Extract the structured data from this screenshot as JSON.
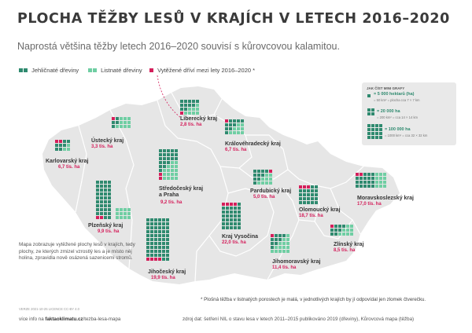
{
  "title": "PLOCHA TĚŽBY LESŮ V KRAJÍCH V LETECH 2016–2020",
  "subtitle": "Naprostá většina těžby letech 2016–2020 souvisí s kůrovcovou kalamitou.",
  "legend": {
    "coniferous": "Jehličnaté dřeviny",
    "deciduous": "Listnaté dřeviny",
    "calamity": "Vytěžené dříví mezi lety 2016–2020 *"
  },
  "colors": {
    "coniferous": "#2f8a6f",
    "deciduous": "#6fcea3",
    "calamity": "#d41f5b",
    "map_fill": "#e6e6e6"
  },
  "guide": {
    "title": "JAK ČÍST MINI GRAFY",
    "rows": [
      {
        "value": "= 5 000 hektarů (ha)",
        "sub": "= 50 km² = plocha cca 7 × 7 km"
      },
      {
        "value": "= 20 000 ha",
        "sub": "= 200 km² = cca 14 × 14 km"
      },
      {
        "value": "= 100 000 ha",
        "sub": "= 1000 km² = cca 32 × 32 km"
      }
    ]
  },
  "regions": [
    {
      "name": "Liberecký kraj",
      "area": "2,8 tis. ha"
    },
    {
      "name": "Ústecký kraj",
      "area": "3,3 tis. ha"
    },
    {
      "name": "Karlovarský kraj",
      "area": "6,7 tis. ha"
    },
    {
      "name": "Královéhradecký kraj",
      "area": "6,7 tis. ha"
    },
    {
      "name": "Středočeský kraj\na Praha",
      "area": "9,2 tis. ha"
    },
    {
      "name": "Plzeňský kraj",
      "area": "9,9 tis. ha"
    },
    {
      "name": "Pardubický kraj",
      "area": "5,0 tis. ha"
    },
    {
      "name": "Olomoucký kraj",
      "area": "18,7 tis. ha"
    },
    {
      "name": "Moravskoslezský kraj",
      "area": "17,0 tis. ha"
    },
    {
      "name": "Kraj Vysočina",
      "area": "22,0 tis. ha"
    },
    {
      "name": "Jihomoravský kraj",
      "area": "11,4 tis. ha"
    },
    {
      "name": "Zlínský kraj",
      "area": "8,5 tis. ha"
    },
    {
      "name": "Jihočeský kraj",
      "area": "19,9 tis. ha"
    }
  ],
  "note": "Mapa zobrazuje vytěžené plochy lesů v krajích, tedy plochy, ze kterých zmizel vzrostlý les a je místo něj holina, zpravidla nově osázená sazenicemi stromů.",
  "footnote": "* Plošná těžba v listnatých porostech je malá, v jednotlivých krajích by jí odpovídal jen zlomek čtverečku.",
  "version": "VERZE 2021-10-25   LICENCE CC-BY 4.0",
  "more_info_prefix": "více info na",
  "more_info_site": "faktaoklimatu.cz",
  "more_info_path": "/tezba-lesa-mapa",
  "source": "zdroj dat: šetření NIL o stavu lesa v letech 2011–2015 publikováno 2019 (dřeviny), Kůrovcová mapa (těžba)"
}
